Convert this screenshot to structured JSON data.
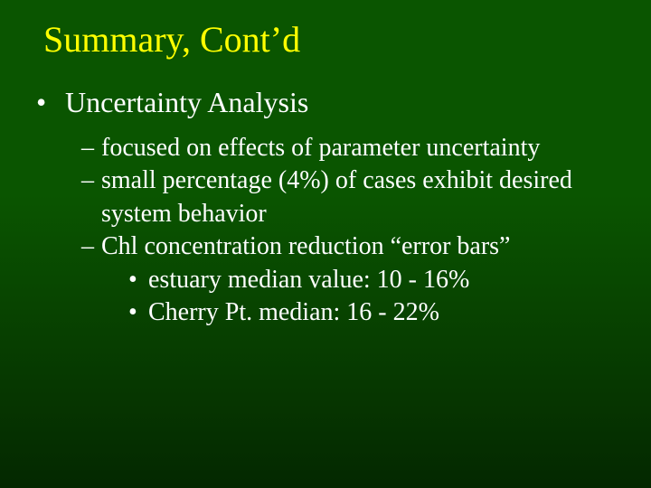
{
  "slide": {
    "title": "Summary, Cont’d",
    "background_gradient_top": "#0a5500",
    "background_gradient_bottom": "#042800",
    "title_color": "#ffff00",
    "body_color": "#ffffff",
    "title_fontsize": 40,
    "body_fontsize_level1": 32,
    "body_fontsize_level2": 28,
    "body_fontsize_level3": 28,
    "level1": {
      "text": "Uncertainty Analysis"
    },
    "level2_items": [
      {
        "text": "focused on effects of parameter uncertainty"
      },
      {
        "text": "small percentage (4%) of cases exhibit desired system behavior"
      },
      {
        "text": "Chl concentration reduction “error bars”"
      }
    ],
    "level3_items": [
      {
        "text": "estuary median value:  10 - 16%"
      },
      {
        "text": "Cherry Pt. median: 16 - 22%"
      }
    ]
  }
}
